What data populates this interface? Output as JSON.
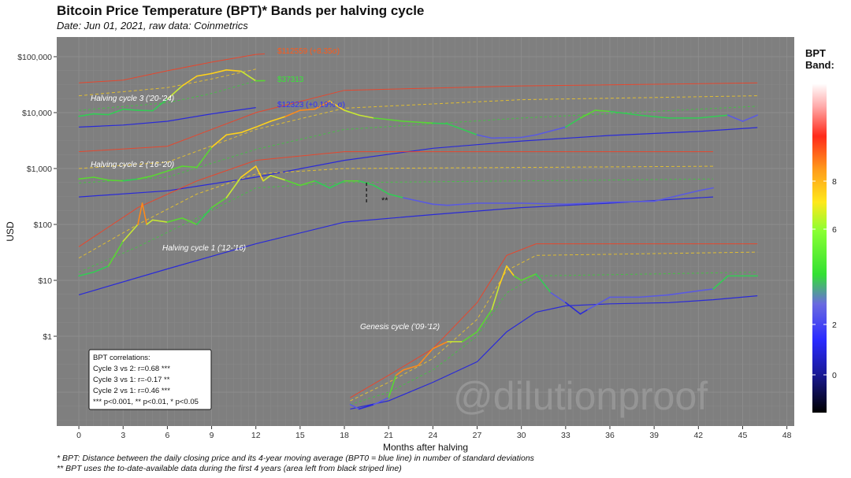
{
  "header": {
    "title": "Bitcoin Price Temperature (BPT)* Bands per halving cycle",
    "subtitle": "Date: Jun 01, 2021, raw data: Coinmetrics"
  },
  "footnotes": [
    "* BPT: Distance between the daily closing price and its 4-year moving average (BPT0 = blue line) in number of standard deviations",
    "** BPT uses the to-date-available data during the first 4 years (area left from black striped line)"
  ],
  "legend": {
    "title_line1": "BPT",
    "title_line2": "Band:",
    "ticks": [
      "8",
      "6",
      "2",
      "0"
    ]
  },
  "correlations_box": {
    "header": "BPT correlations:",
    "lines": [
      "Cycle 3 vs 2: r=0.68 ***",
      "Cycle 3 vs 1: r=-0.17 **",
      "Cycle 2 vs 1: r=0.46 ***",
      "*** p<0.001, ** p<0.01, * p<0.05"
    ]
  },
  "annotations": {
    "cycle3": "Halving cycle 3 ('20-'24)",
    "cycle2": "Halving cycle 2 ('16-'20)",
    "cycle1": "Halving cycle 1 ('12-'16)",
    "genesis": "Genesis cycle ('09-'12)",
    "top_value": "$112559 (+8.35σ)",
    "green_value": "$37313",
    "blue_value": "$12323 (+0.19% σ)",
    "double_star": "**",
    "watermark": "@dilutionproof"
  },
  "colors": {
    "panel": "#7f7f7f",
    "grid": "#8d8d8d",
    "bpt0_line": "#2a2ad8",
    "band_high": "#ff3a1a",
    "band_mid": "#ffd21a",
    "band_low": "#33d433",
    "label_red": "#ff5a1a",
    "label_green": "#35e835",
    "label_blue": "#3030ff"
  },
  "chart_data": {
    "type": "line",
    "title": "Bitcoin Price Temperature (BPT)* Bands per halving cycle",
    "xlabel": "Months after halving",
    "ylabel": "USD",
    "x_ticks": [
      0,
      3,
      6,
      9,
      12,
      15,
      18,
      21,
      24,
      27,
      30,
      33,
      36,
      39,
      42,
      45,
      48
    ],
    "y_ticks": [
      "$1",
      "$10",
      "$100",
      "$1,000",
      "$10,000",
      "$100,000"
    ],
    "y_scale": "log",
    "xlim": [
      -1.5,
      48.5
    ],
    "grid": true,
    "legend_position": "right",
    "series": [
      {
        "name": "Halving cycle 3 ('20-'24)",
        "price": [
          [
            0,
            8600
          ],
          [
            1,
            9500
          ],
          [
            2,
            9200
          ],
          [
            3,
            11500
          ],
          [
            4,
            11000
          ],
          [
            5,
            10800
          ],
          [
            6,
            17500
          ],
          [
            7,
            30000
          ],
          [
            8,
            45000
          ],
          [
            9,
            50000
          ],
          [
            10,
            58000
          ],
          [
            11,
            55000
          ],
          [
            12,
            37000
          ],
          [
            12.6,
            37313
          ]
        ],
        "bpt0": [
          [
            0,
            5500
          ],
          [
            3,
            6000
          ],
          [
            6,
            7000
          ],
          [
            9,
            9500
          ],
          [
            12,
            12323
          ]
        ],
        "band_high": [
          [
            0,
            34000
          ],
          [
            3,
            38000
          ],
          [
            6,
            56000
          ],
          [
            9,
            80000
          ],
          [
            12,
            110000
          ],
          [
            12.6,
            112559
          ]
        ],
        "band_mid": [
          [
            0,
            20000
          ],
          [
            6,
            28000
          ],
          [
            9,
            40000
          ],
          [
            12,
            60000
          ]
        ],
        "band_low": [
          [
            0,
            11000
          ],
          [
            6,
            15000
          ],
          [
            9,
            22000
          ],
          [
            12,
            37000
          ]
        ]
      },
      {
        "name": "Halving cycle 2 ('16-'20)",
        "price": [
          [
            0,
            650
          ],
          [
            1,
            700
          ],
          [
            2,
            620
          ],
          [
            3,
            600
          ],
          [
            4,
            650
          ],
          [
            5,
            740
          ],
          [
            6,
            900
          ],
          [
            7,
            1100
          ],
          [
            8,
            1050
          ],
          [
            9,
            2400
          ],
          [
            10,
            4000
          ],
          [
            11,
            4400
          ],
          [
            12,
            5500
          ],
          [
            13,
            7000
          ],
          [
            14,
            8500
          ],
          [
            15,
            11000
          ],
          [
            16,
            11500
          ],
          [
            17,
            16000
          ],
          [
            18,
            11000
          ],
          [
            19,
            9000
          ],
          [
            20,
            8000
          ],
          [
            21,
            7500
          ],
          [
            22,
            7000
          ],
          [
            24,
            6500
          ],
          [
            25,
            6300
          ],
          [
            27,
            4000
          ],
          [
            28,
            3500
          ],
          [
            30,
            3600
          ],
          [
            31,
            4000
          ],
          [
            33,
            5500
          ],
          [
            34,
            8000
          ],
          [
            35,
            11000
          ],
          [
            36,
            10500
          ],
          [
            38,
            9000
          ],
          [
            40,
            8000
          ],
          [
            42,
            8000
          ],
          [
            44,
            9000
          ],
          [
            45,
            7000
          ],
          [
            46,
            9000
          ]
        ],
        "bpt0": [
          [
            0,
            310
          ],
          [
            6,
            400
          ],
          [
            12,
            700
          ],
          [
            18,
            1400
          ],
          [
            24,
            2300
          ],
          [
            30,
            3100
          ],
          [
            36,
            3900
          ],
          [
            42,
            4600
          ],
          [
            46,
            5400
          ]
        ],
        "band_high": [
          [
            0,
            2000
          ],
          [
            6,
            2500
          ],
          [
            12,
            10000
          ],
          [
            18,
            25000
          ],
          [
            30,
            30000
          ],
          [
            46,
            34000
          ]
        ],
        "band_mid": [
          [
            0,
            1000
          ],
          [
            6,
            1300
          ],
          [
            12,
            5000
          ],
          [
            18,
            12000
          ],
          [
            30,
            17000
          ],
          [
            46,
            20000
          ]
        ],
        "band_low": [
          [
            0,
            550
          ],
          [
            6,
            700
          ],
          [
            12,
            2200
          ],
          [
            18,
            5000
          ],
          [
            30,
            8000
          ],
          [
            46,
            13000
          ]
        ]
      },
      {
        "name": "Halving cycle 1 ('12-'16)",
        "price": [
          [
            0,
            12
          ],
          [
            1,
            14
          ],
          [
            2,
            18
          ],
          [
            3,
            50
          ],
          [
            4,
            100
          ],
          [
            4.3,
            240
          ],
          [
            4.6,
            100
          ],
          [
            5,
            120
          ],
          [
            6,
            110
          ],
          [
            7,
            130
          ],
          [
            8,
            100
          ],
          [
            9,
            200
          ],
          [
            10,
            300
          ],
          [
            11,
            700
          ],
          [
            12,
            1100
          ],
          [
            12.5,
            600
          ],
          [
            13,
            750
          ],
          [
            14,
            620
          ],
          [
            15,
            500
          ],
          [
            16,
            600
          ],
          [
            17,
            450
          ],
          [
            18,
            600
          ],
          [
            19,
            600
          ],
          [
            20,
            500
          ],
          [
            21,
            350
          ],
          [
            22,
            300
          ],
          [
            24,
            230
          ],
          [
            25,
            220
          ],
          [
            27,
            240
          ],
          [
            30,
            240
          ],
          [
            33,
            230
          ],
          [
            36,
            250
          ],
          [
            39,
            260
          ],
          [
            42,
            400
          ],
          [
            43,
            450
          ]
        ],
        "bpt0": [
          [
            0,
            5.5
          ],
          [
            6,
            16
          ],
          [
            12,
            45
          ],
          [
            18,
            110
          ],
          [
            24,
            150
          ],
          [
            30,
            200
          ],
          [
            36,
            240
          ],
          [
            43,
            310
          ]
        ],
        "band_high": [
          [
            0,
            40
          ],
          [
            4,
            200
          ],
          [
            8,
            600
          ],
          [
            12,
            1400
          ],
          [
            18,
            2000
          ],
          [
            43,
            2000
          ]
        ],
        "band_mid": [
          [
            0,
            25
          ],
          [
            4,
            100
          ],
          [
            8,
            350
          ],
          [
            12,
            800
          ],
          [
            18,
            1000
          ],
          [
            43,
            1100
          ]
        ],
        "band_low": [
          [
            0,
            14
          ],
          [
            4,
            40
          ],
          [
            8,
            130
          ],
          [
            12,
            450
          ],
          [
            18,
            560
          ],
          [
            43,
            650
          ]
        ]
      },
      {
        "name": "Genesis cycle ('09-'12)",
        "price": [
          [
            18.4,
            0.06
          ],
          [
            19,
            0.05
          ],
          [
            20,
            0.06
          ],
          [
            21,
            0.08
          ],
          [
            21.5,
            0.2
          ],
          [
            22,
            0.25
          ],
          [
            23,
            0.3
          ],
          [
            24,
            0.6
          ],
          [
            25,
            0.8
          ],
          [
            26,
            0.8
          ],
          [
            27,
            1.2
          ],
          [
            28,
            3
          ],
          [
            28.5,
            8
          ],
          [
            29,
            18
          ],
          [
            29.5,
            12
          ],
          [
            30,
            10
          ],
          [
            31,
            13
          ],
          [
            32,
            6
          ],
          [
            33,
            4
          ],
          [
            34,
            2.5
          ],
          [
            34.5,
            3
          ],
          [
            36,
            5
          ],
          [
            38,
            5
          ],
          [
            40,
            5.5
          ],
          [
            42,
            6.5
          ],
          [
            43,
            7
          ],
          [
            44,
            12
          ],
          [
            45,
            12
          ],
          [
            46,
            12
          ]
        ],
        "bpt0": [
          [
            18.4,
            0.05
          ],
          [
            21,
            0.07
          ],
          [
            24,
            0.15
          ],
          [
            27,
            0.35
          ],
          [
            29,
            1.2
          ],
          [
            31,
            2.7
          ],
          [
            33,
            3.5
          ],
          [
            36,
            3.8
          ],
          [
            40,
            4
          ],
          [
            43,
            4.5
          ],
          [
            46,
            5.3
          ]
        ],
        "band_high": [
          [
            18.4,
            0.08
          ],
          [
            21,
            0.2
          ],
          [
            24,
            0.6
          ],
          [
            27,
            4
          ],
          [
            29,
            28
          ],
          [
            31,
            45
          ],
          [
            46,
            45
          ]
        ],
        "band_mid": [
          [
            18.4,
            0.07
          ],
          [
            21,
            0.15
          ],
          [
            24,
            0.4
          ],
          [
            27,
            2
          ],
          [
            29,
            15
          ],
          [
            31,
            28
          ],
          [
            46,
            32
          ]
        ],
        "band_low": [
          [
            18.4,
            0.06
          ],
          [
            21,
            0.1
          ],
          [
            24,
            0.25
          ],
          [
            27,
            1
          ],
          [
            29,
            6
          ],
          [
            31,
            12
          ],
          [
            46,
            14
          ]
        ]
      }
    ]
  }
}
